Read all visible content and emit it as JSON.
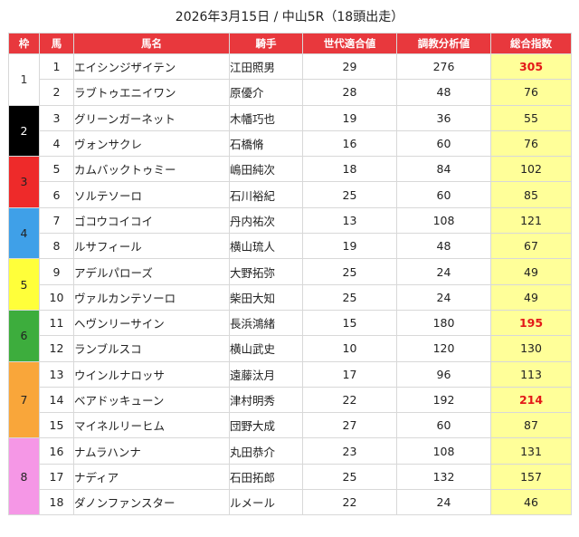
{
  "title": "2026年3月15日 / 中山5R（18頭出走）",
  "headers": {
    "waku": "枠",
    "uma": "馬",
    "name": "馬名",
    "jockey": "騎手",
    "generation": "世代適合値",
    "training": "調教分析値",
    "total": "総合指数"
  },
  "colors": {
    "header_bg": "#e8383d",
    "index_bg": "#ffff99",
    "index_highlight": "#e31818"
  },
  "wakus": [
    {
      "label": "1",
      "bg": "#ffffff",
      "fg": "#333333",
      "rows": 2
    },
    {
      "label": "2",
      "bg": "#000000",
      "fg": "#ffffff",
      "rows": 2
    },
    {
      "label": "3",
      "bg": "#ee2a2a",
      "fg": "#222222",
      "rows": 2
    },
    {
      "label": "4",
      "bg": "#3fa0e8",
      "fg": "#222222",
      "rows": 2
    },
    {
      "label": "5",
      "bg": "#ffff3a",
      "fg": "#222222",
      "rows": 2
    },
    {
      "label": "6",
      "bg": "#3dad3d",
      "fg": "#222222",
      "rows": 2
    },
    {
      "label": "7",
      "bg": "#f9a63a",
      "fg": "#222222",
      "rows": 3
    },
    {
      "label": "8",
      "bg": "#f597e6",
      "fg": "#222222",
      "rows": 3
    }
  ],
  "horses": [
    {
      "num": "1",
      "name": "エイシンジザイテン",
      "jockey": "江田照男",
      "generation": "29",
      "training": "276",
      "index": "305",
      "highlight": true
    },
    {
      "num": "2",
      "name": "ラブトゥエニイワン",
      "jockey": "原優介",
      "generation": "28",
      "training": "48",
      "index": "76",
      "highlight": false
    },
    {
      "num": "3",
      "name": "グリーンガーネット",
      "jockey": "木幡巧也",
      "generation": "19",
      "training": "36",
      "index": "55",
      "highlight": false
    },
    {
      "num": "4",
      "name": "ヴォンサクレ",
      "jockey": "石橋脩",
      "generation": "16",
      "training": "60",
      "index": "76",
      "highlight": false
    },
    {
      "num": "5",
      "name": "カムバックトゥミー",
      "jockey": "嶋田純次",
      "generation": "18",
      "training": "84",
      "index": "102",
      "highlight": false
    },
    {
      "num": "6",
      "name": "ソルテソーロ",
      "jockey": "石川裕紀",
      "generation": "25",
      "training": "60",
      "index": "85",
      "highlight": false
    },
    {
      "num": "7",
      "name": "ゴコウコイコイ",
      "jockey": "丹内祐次",
      "generation": "13",
      "training": "108",
      "index": "121",
      "highlight": false
    },
    {
      "num": "8",
      "name": "ルサフィール",
      "jockey": "横山琉人",
      "generation": "19",
      "training": "48",
      "index": "67",
      "highlight": false
    },
    {
      "num": "9",
      "name": "アデルパローズ",
      "jockey": "大野拓弥",
      "generation": "25",
      "training": "24",
      "index": "49",
      "highlight": false
    },
    {
      "num": "10",
      "name": "ヴァルカンテソーロ",
      "jockey": "柴田大知",
      "generation": "25",
      "training": "24",
      "index": "49",
      "highlight": false
    },
    {
      "num": "11",
      "name": "ヘヴンリーサイン",
      "jockey": "長浜鴻緒",
      "generation": "15",
      "training": "180",
      "index": "195",
      "highlight": true
    },
    {
      "num": "12",
      "name": "ランブルスコ",
      "jockey": "横山武史",
      "generation": "10",
      "training": "120",
      "index": "130",
      "highlight": false
    },
    {
      "num": "13",
      "name": "ウインルナロッサ",
      "jockey": "遠藤汰月",
      "generation": "17",
      "training": "96",
      "index": "113",
      "highlight": false
    },
    {
      "num": "14",
      "name": "ベアドッキューン",
      "jockey": "津村明秀",
      "generation": "22",
      "training": "192",
      "index": "214",
      "highlight": true
    },
    {
      "num": "15",
      "name": "マイネルリーヒム",
      "jockey": "団野大成",
      "generation": "27",
      "training": "60",
      "index": "87",
      "highlight": false
    },
    {
      "num": "16",
      "name": "ナムラハンナ",
      "jockey": "丸田恭介",
      "generation": "23",
      "training": "108",
      "index": "131",
      "highlight": false
    },
    {
      "num": "17",
      "name": "ナディア",
      "jockey": "石田拓郎",
      "generation": "25",
      "training": "132",
      "index": "157",
      "highlight": false
    },
    {
      "num": "18",
      "name": "ダノンファンスター",
      "jockey": "ルメール",
      "generation": "22",
      "training": "24",
      "index": "46",
      "highlight": false
    }
  ]
}
